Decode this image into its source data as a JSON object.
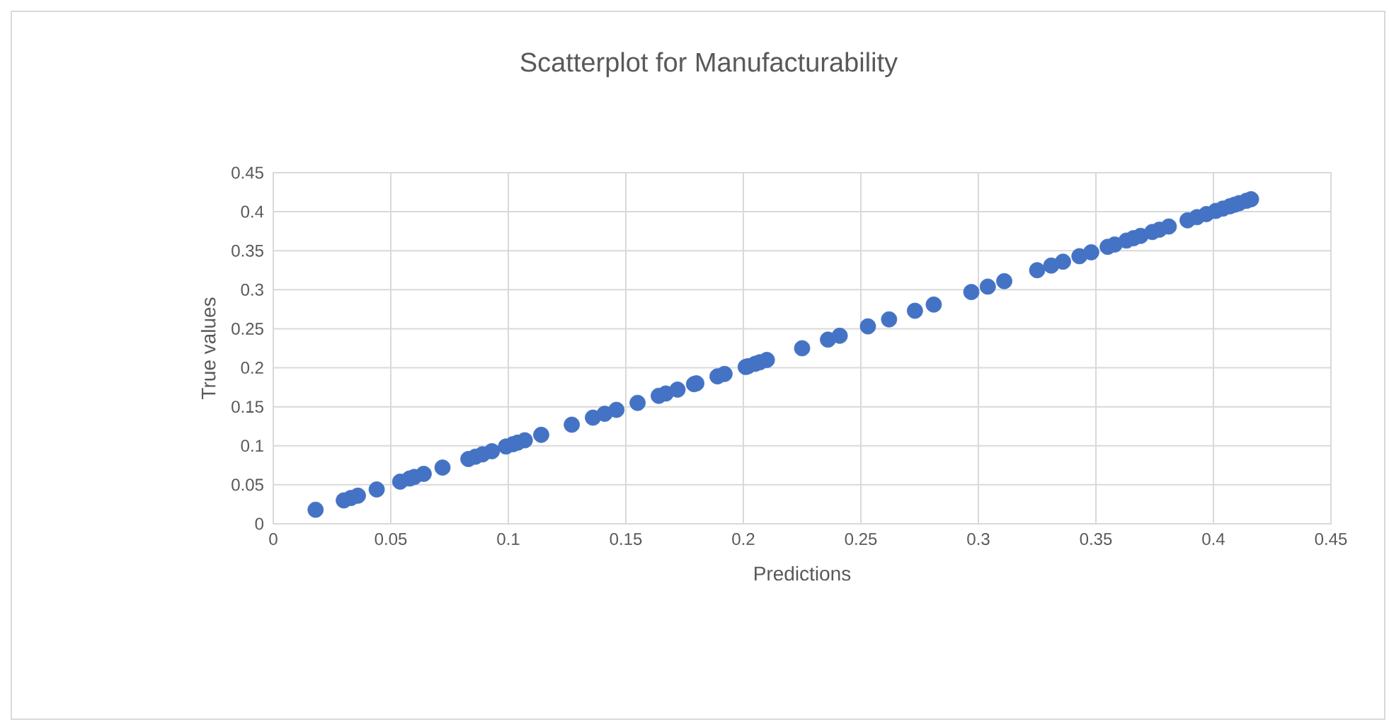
{
  "chart_data": {
    "type": "scatter",
    "title": "Scatterplot for Manufacturability",
    "xlabel": "Predictions",
    "ylabel": "True values",
    "x": [
      0.018,
      0.03,
      0.033,
      0.036,
      0.044,
      0.054,
      0.058,
      0.06,
      0.064,
      0.072,
      0.083,
      0.086,
      0.089,
      0.093,
      0.099,
      0.102,
      0.104,
      0.107,
      0.114,
      0.127,
      0.136,
      0.141,
      0.146,
      0.155,
      0.164,
      0.167,
      0.172,
      0.179,
      0.18,
      0.189,
      0.192,
      0.201,
      0.202,
      0.205,
      0.207,
      0.21,
      0.225,
      0.236,
      0.241,
      0.253,
      0.262,
      0.273,
      0.281,
      0.297,
      0.304,
      0.311,
      0.325,
      0.331,
      0.336,
      0.343,
      0.348,
      0.355,
      0.358,
      0.363,
      0.366,
      0.369,
      0.374,
      0.377,
      0.381,
      0.389,
      0.393,
      0.397,
      0.401,
      0.404,
      0.407,
      0.409,
      0.411,
      0.414,
      0.416
    ],
    "values": [
      0.018,
      0.03,
      0.033,
      0.036,
      0.044,
      0.054,
      0.058,
      0.06,
      0.064,
      0.072,
      0.083,
      0.086,
      0.089,
      0.093,
      0.099,
      0.102,
      0.104,
      0.107,
      0.114,
      0.127,
      0.136,
      0.141,
      0.146,
      0.155,
      0.164,
      0.167,
      0.172,
      0.179,
      0.18,
      0.189,
      0.192,
      0.201,
      0.202,
      0.205,
      0.207,
      0.21,
      0.225,
      0.236,
      0.241,
      0.253,
      0.262,
      0.273,
      0.281,
      0.297,
      0.304,
      0.311,
      0.325,
      0.331,
      0.336,
      0.343,
      0.348,
      0.355,
      0.358,
      0.363,
      0.366,
      0.369,
      0.374,
      0.377,
      0.381,
      0.389,
      0.393,
      0.397,
      0.401,
      0.404,
      0.407,
      0.409,
      0.411,
      0.414,
      0.416
    ],
    "color": "#4472c4",
    "marker": "circle",
    "grid": true,
    "xlim": [
      0,
      0.45
    ],
    "ylim": [
      0,
      0.45
    ],
    "xticks": [
      0,
      0.05,
      0.1,
      0.15,
      0.2,
      0.25,
      0.3,
      0.35,
      0.4,
      0.45
    ],
    "yticks": [
      0,
      0.05,
      0.1,
      0.15,
      0.2,
      0.25,
      0.3,
      0.35,
      0.4,
      0.45
    ]
  }
}
